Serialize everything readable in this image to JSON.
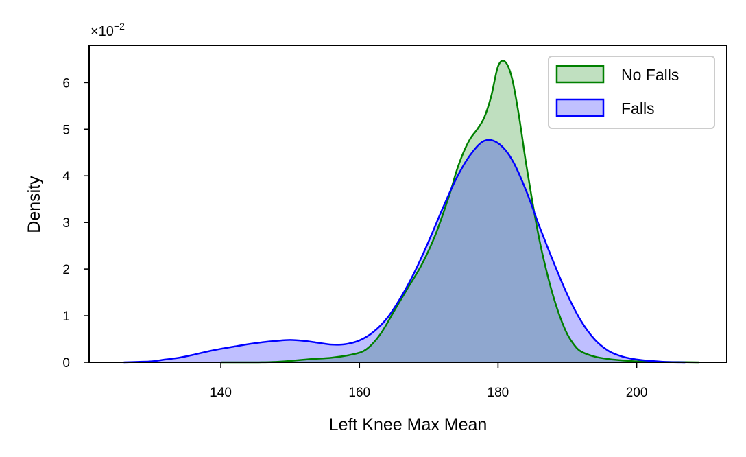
{
  "chart_data": {
    "type": "area",
    "title": "",
    "xlabel": "Left Knee Max Mean",
    "ylabel": "Density",
    "y_scale_label": "×10",
    "y_scale_exponent": "−2",
    "xlim": [
      121,
      213
    ],
    "ylim": [
      0,
      6.8
    ],
    "x_ticks": [
      140,
      160,
      180,
      200
    ],
    "y_ticks": [
      0,
      1,
      2,
      3,
      4,
      5,
      6
    ],
    "grid": false,
    "legend_position": "top-right",
    "series": [
      {
        "name": "No Falls",
        "color": "#008000",
        "fill": "#c0e0c0",
        "points": [
          [
            140,
            0.0
          ],
          [
            145,
            0.0
          ],
          [
            148,
            0.01
          ],
          [
            150,
            0.03
          ],
          [
            153,
            0.07
          ],
          [
            156,
            0.1
          ],
          [
            159,
            0.17
          ],
          [
            161,
            0.28
          ],
          [
            163,
            0.6
          ],
          [
            165,
            1.1
          ],
          [
            167,
            1.6
          ],
          [
            169,
            2.1
          ],
          [
            171,
            2.75
          ],
          [
            173,
            3.6
          ],
          [
            174,
            4.1
          ],
          [
            175,
            4.5
          ],
          [
            176,
            4.8
          ],
          [
            177,
            5.0
          ],
          [
            178,
            5.25
          ],
          [
            179,
            5.7
          ],
          [
            180,
            6.35
          ],
          [
            181,
            6.45
          ],
          [
            182,
            6.1
          ],
          [
            183,
            5.3
          ],
          [
            184,
            4.3
          ],
          [
            185,
            3.4
          ],
          [
            186,
            2.6
          ],
          [
            187,
            1.95
          ],
          [
            188,
            1.4
          ],
          [
            189,
            0.95
          ],
          [
            190,
            0.6
          ],
          [
            191,
            0.37
          ],
          [
            192,
            0.23
          ],
          [
            194,
            0.12
          ],
          [
            196,
            0.07
          ],
          [
            198,
            0.04
          ],
          [
            200,
            0.02
          ],
          [
            203,
            0.01
          ],
          [
            206,
            0.005
          ],
          [
            209,
            0.0
          ]
        ]
      },
      {
        "name": "Falls",
        "color": "#0000ff",
        "fill": "#c0c0ff",
        "points": [
          [
            126,
            0.0
          ],
          [
            128,
            0.01
          ],
          [
            130,
            0.02
          ],
          [
            132,
            0.06
          ],
          [
            134,
            0.1
          ],
          [
            136,
            0.16
          ],
          [
            138,
            0.23
          ],
          [
            140,
            0.29
          ],
          [
            142,
            0.34
          ],
          [
            144,
            0.39
          ],
          [
            146,
            0.43
          ],
          [
            148,
            0.46
          ],
          [
            150,
            0.48
          ],
          [
            152,
            0.46
          ],
          [
            154,
            0.42
          ],
          [
            156,
            0.38
          ],
          [
            158,
            0.39
          ],
          [
            160,
            0.47
          ],
          [
            162,
            0.65
          ],
          [
            164,
            0.95
          ],
          [
            166,
            1.4
          ],
          [
            168,
            1.95
          ],
          [
            170,
            2.6
          ],
          [
            172,
            3.3
          ],
          [
            174,
            3.95
          ],
          [
            176,
            4.45
          ],
          [
            178,
            4.75
          ],
          [
            180,
            4.7
          ],
          [
            182,
            4.35
          ],
          [
            184,
            3.7
          ],
          [
            186,
            2.9
          ],
          [
            188,
            2.15
          ],
          [
            190,
            1.45
          ],
          [
            192,
            0.88
          ],
          [
            194,
            0.48
          ],
          [
            196,
            0.24
          ],
          [
            198,
            0.12
          ],
          [
            200,
            0.06
          ],
          [
            202,
            0.03
          ],
          [
            204,
            0.01
          ],
          [
            207,
            0.0
          ]
        ]
      }
    ]
  }
}
